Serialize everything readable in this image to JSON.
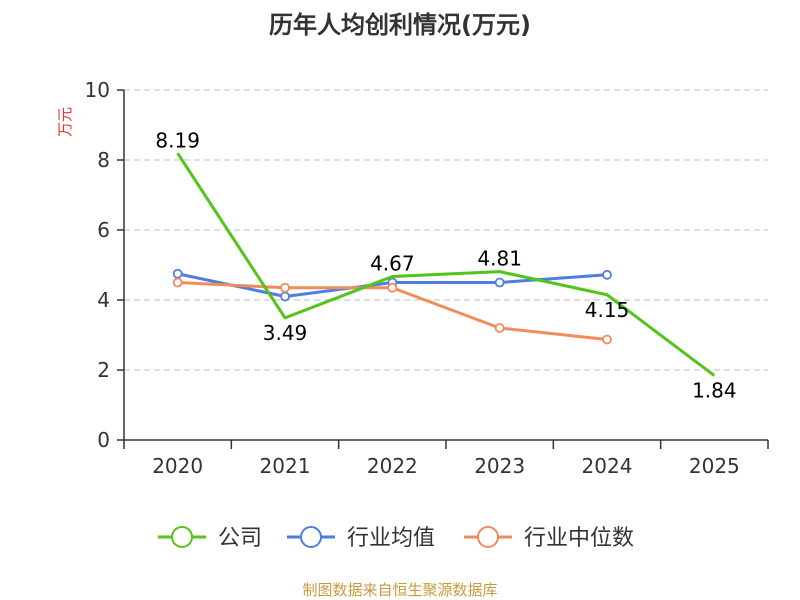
{
  "chart_data": {
    "type": "line",
    "title": "历年人均创利情况(万元)",
    "ylabel": "万元",
    "xlabel": "",
    "categories": [
      "2020",
      "2021",
      "2022",
      "2023",
      "2024",
      "2025"
    ],
    "ylim": [
      0,
      10
    ],
    "yticks": [
      0,
      2,
      4,
      6,
      8,
      10
    ],
    "grid": true,
    "legend_position": "bottom",
    "series": [
      {
        "name": "公司",
        "color": "#52c41a",
        "values": [
          8.19,
          3.49,
          4.67,
          4.81,
          4.15,
          1.84
        ],
        "data_labels": [
          "8.19",
          "3.49",
          "4.67",
          "4.81",
          "4.15",
          "1.84"
        ]
      },
      {
        "name": "行业均值",
        "color": "#4f7ee0",
        "values": [
          4.75,
          4.1,
          4.5,
          4.5,
          4.72,
          null
        ]
      },
      {
        "name": "行业中位数",
        "color": "#f28b5c",
        "values": [
          4.5,
          4.35,
          4.35,
          3.2,
          2.87,
          null
        ]
      }
    ],
    "source": "制图数据来自恒生聚源数据库"
  }
}
